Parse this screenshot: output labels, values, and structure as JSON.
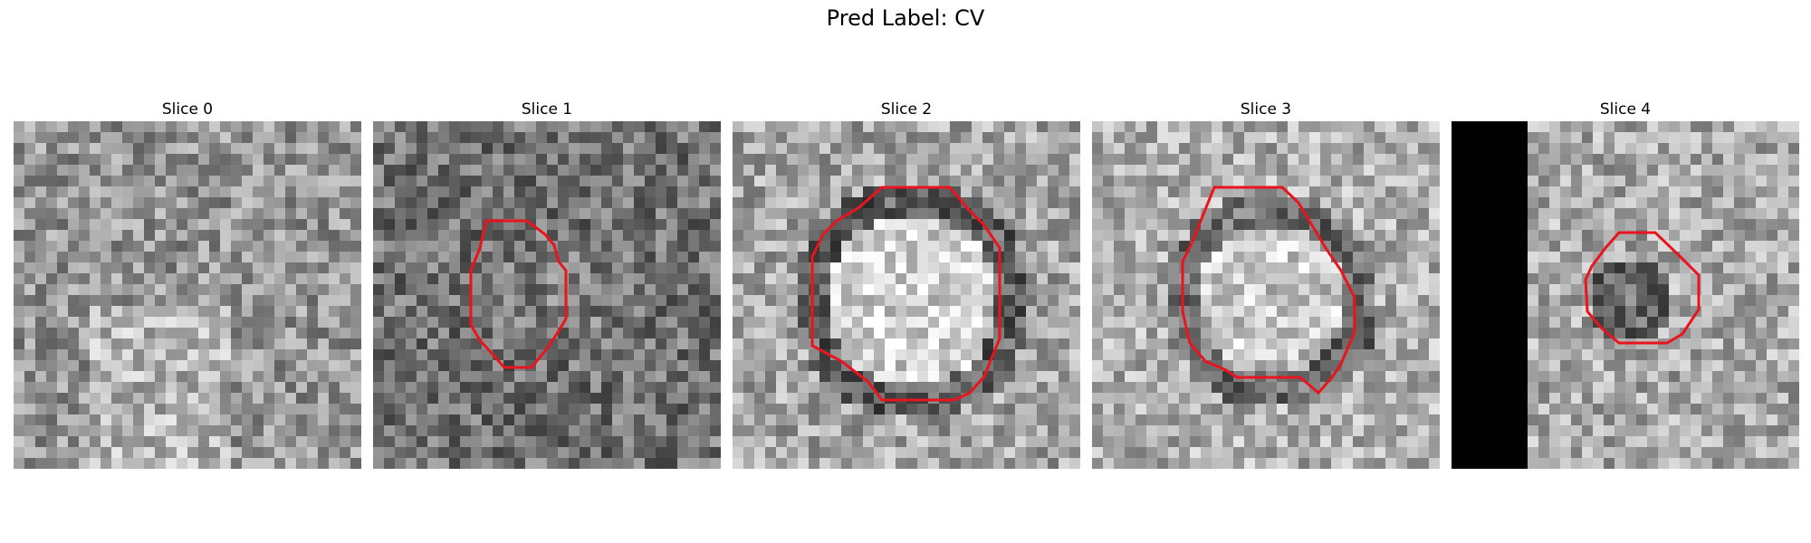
{
  "figure": {
    "title": "Pred Label: CV"
  },
  "slices": [
    {
      "title": "Slice 0",
      "has_contour": false,
      "black_band": false
    },
    {
      "title": "Slice 1",
      "has_contour": true,
      "black_band": false
    },
    {
      "title": "Slice 2",
      "has_contour": true,
      "black_band": false
    },
    {
      "title": "Slice 3",
      "has_contour": true,
      "black_band": false
    },
    {
      "title": "Slice 4",
      "has_contour": true,
      "black_band": true
    }
  ],
  "contour_color": "#e8141e"
}
